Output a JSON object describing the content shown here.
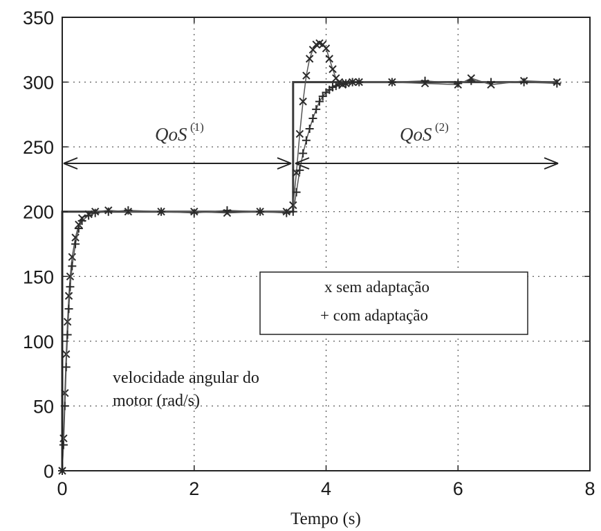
{
  "chart_data": {
    "type": "line",
    "title": "",
    "xlabel": "Tempo (s)",
    "ylabel": "",
    "xlim": [
      0,
      8
    ],
    "ylim": [
      0,
      350
    ],
    "xticks": [
      0,
      2,
      4,
      6,
      8
    ],
    "yticks": [
      0,
      50,
      100,
      150,
      200,
      250,
      300,
      350
    ],
    "grid": true,
    "reference": {
      "x": [
        0,
        0,
        3.5,
        3.5,
        7.5
      ],
      "y": [
        0,
        200,
        200,
        300,
        300
      ]
    },
    "series": [
      {
        "name": "sem adaptação",
        "marker": "x",
        "x": [
          0,
          0.02,
          0.04,
          0.06,
          0.08,
          0.1,
          0.12,
          0.15,
          0.2,
          0.25,
          0.3,
          0.4,
          0.5,
          0.7,
          1.0,
          1.5,
          2.0,
          2.5,
          3.0,
          3.4,
          3.5,
          3.55,
          3.6,
          3.65,
          3.7,
          3.75,
          3.8,
          3.85,
          3.9,
          3.95,
          4.0,
          4.05,
          4.1,
          4.15,
          4.2,
          4.25,
          4.3,
          4.4,
          4.5,
          5.0,
          5.5,
          6.0,
          6.2,
          6.5,
          7.0,
          7.5
        ],
        "y": [
          0,
          25,
          60,
          90,
          115,
          135,
          150,
          165,
          180,
          190,
          195,
          198,
          200,
          201,
          200,
          200,
          200,
          199,
          200,
          200,
          205,
          230,
          260,
          285,
          305,
          318,
          325,
          329,
          330,
          329,
          326,
          318,
          310,
          303,
          300,
          298,
          299,
          300,
          300,
          300,
          299,
          298,
          303,
          298,
          301,
          300
        ]
      },
      {
        "name": "com adaptação",
        "marker": "+",
        "x": [
          0,
          0.02,
          0.04,
          0.06,
          0.08,
          0.1,
          0.12,
          0.15,
          0.2,
          0.25,
          0.3,
          0.4,
          0.5,
          0.7,
          1.0,
          1.5,
          2.0,
          2.5,
          3.0,
          3.4,
          3.5,
          3.55,
          3.6,
          3.65,
          3.7,
          3.75,
          3.8,
          3.85,
          3.9,
          3.95,
          4.0,
          4.05,
          4.1,
          4.15,
          4.2,
          4.3,
          4.4,
          4.5,
          5.0,
          5.5,
          6.0,
          6.2,
          6.5,
          7.0,
          7.5
        ],
        "y": [
          0,
          20,
          50,
          80,
          105,
          125,
          142,
          158,
          175,
          187,
          193,
          197,
          199,
          200,
          201,
          200,
          199,
          201,
          200,
          199,
          200,
          215,
          232,
          245,
          255,
          264,
          272,
          279,
          285,
          289,
          292,
          294,
          296,
          297,
          298,
          299,
          300,
          300,
          300,
          301,
          299,
          301,
          300,
          300,
          299
        ]
      }
    ],
    "annotations": {
      "qos1": "QoS",
      "qos1_sup": "(1)",
      "qos2": "QoS",
      "qos2_sup": "(2)",
      "note_line1": "velocidade angular do",
      "note_line2": "motor (rad/s)"
    },
    "legend": {
      "placement": "center-right",
      "entries": [
        {
          "symbol": "x",
          "label": "sem adaptação"
        },
        {
          "symbol": "+",
          "label": "com adaptação"
        }
      ]
    }
  }
}
